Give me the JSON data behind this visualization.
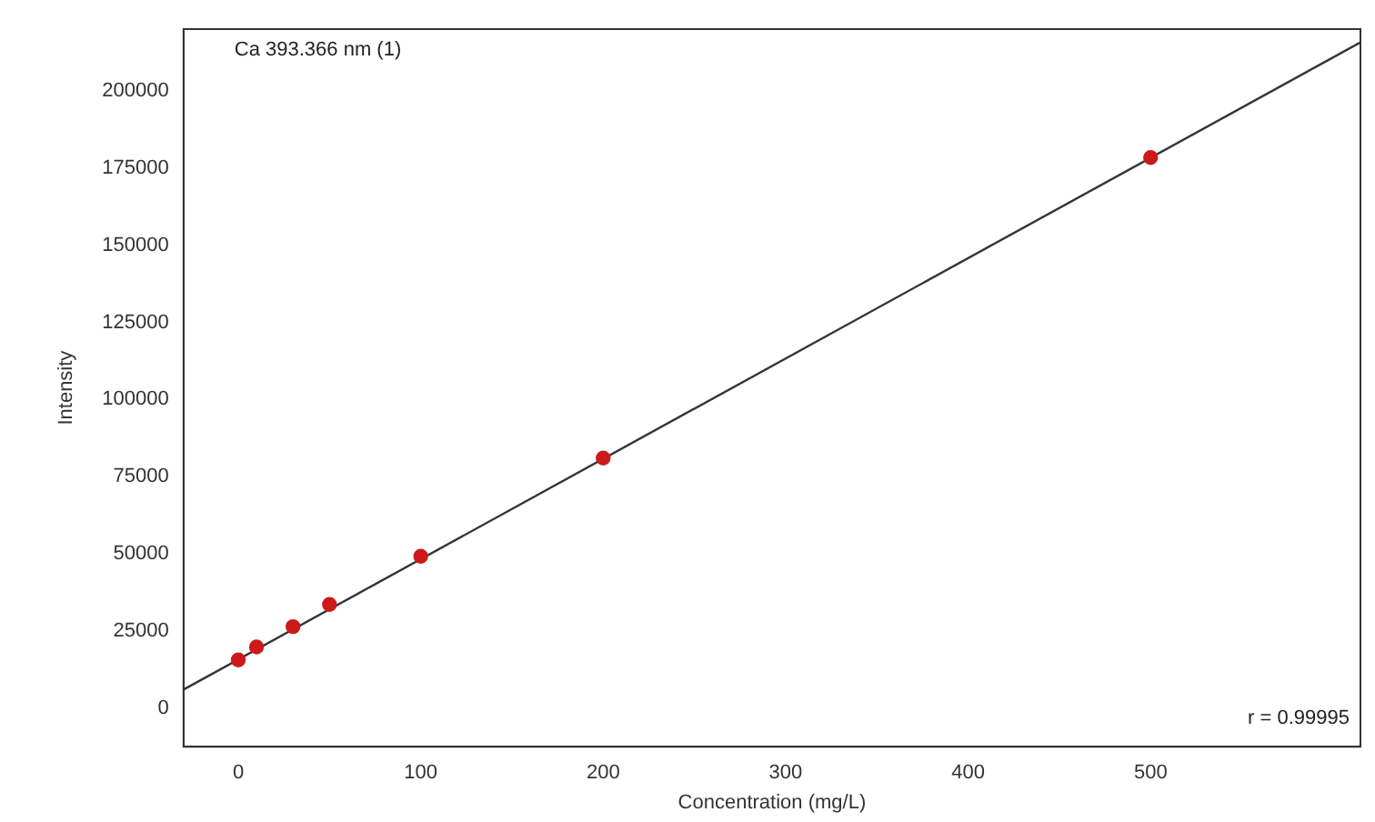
{
  "chart_data": {
    "type": "scatter",
    "xlabel": "Concentration (mg/L)",
    "ylabel": "Intensity",
    "annotations": [
      "Ca 393.366 nm (1)",
      "r = 0.99995"
    ],
    "series": [
      {
        "color": "#cc1a1a",
        "x": [
          0,
          10,
          30,
          50,
          100,
          200,
          500
        ],
        "values": [
          15600,
          19800,
          26400,
          33600,
          49200,
          81000,
          178400
        ],
        "marker": "circle"
      },
      {
        "type": "line",
        "color": "#333333",
        "x": [
          -30,
          615
        ],
        "values": [
          6000,
          215700
        ],
        "marker": "none",
        "line_style": "solid"
      }
    ],
    "xlim": [
      -30,
      615
    ],
    "ylim": [
      -12500,
      220000
    ],
    "xticks": [
      0,
      100,
      200,
      300,
      400,
      500
    ],
    "yticks": [
      0,
      25000,
      50000,
      75000,
      100000,
      125000,
      150000,
      175000,
      200000
    ],
    "grid": false,
    "legend": false
  }
}
